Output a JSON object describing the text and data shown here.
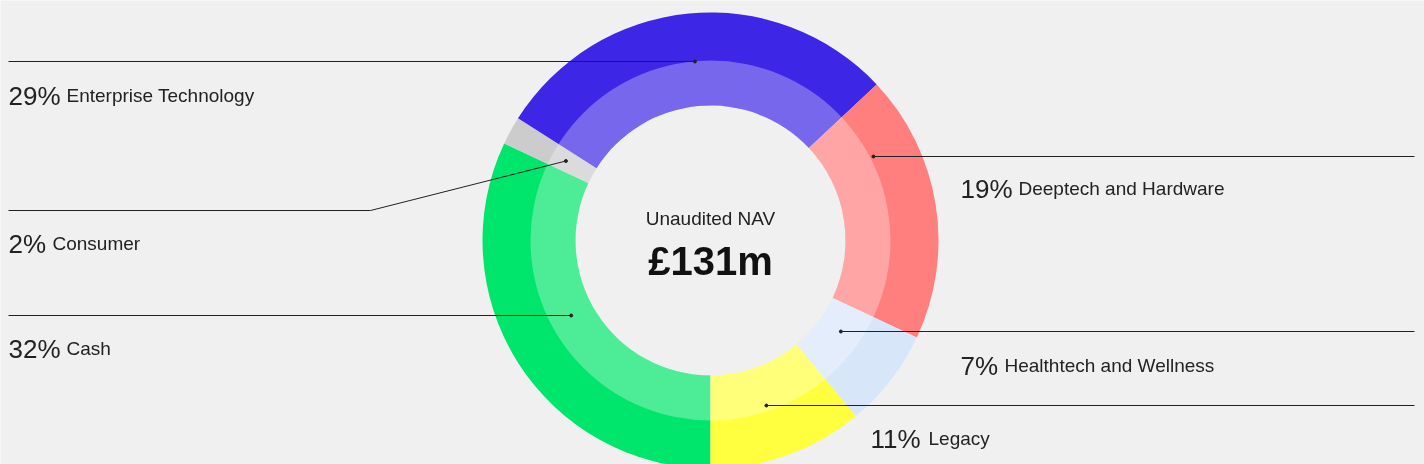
{
  "chart_data": {
    "type": "donut",
    "title": "Unaudited NAV",
    "subtitle": "£131m",
    "categories": [
      "Cash",
      "Consumer",
      "Enterprise Technology",
      "Deeptech and Hardware",
      "Healthtech and Wellness",
      "Legacy"
    ],
    "values": [
      32,
      2,
      29,
      19,
      7,
      11
    ],
    "value_labels": [
      "32%",
      "2%",
      "29%",
      "19%",
      "7%",
      "11%"
    ],
    "colors": [
      "#00e56b",
      "#cccccc",
      "#3d26e6",
      "#ff7f7f",
      "#d8e6fa",
      "#ffff40"
    ]
  }
}
